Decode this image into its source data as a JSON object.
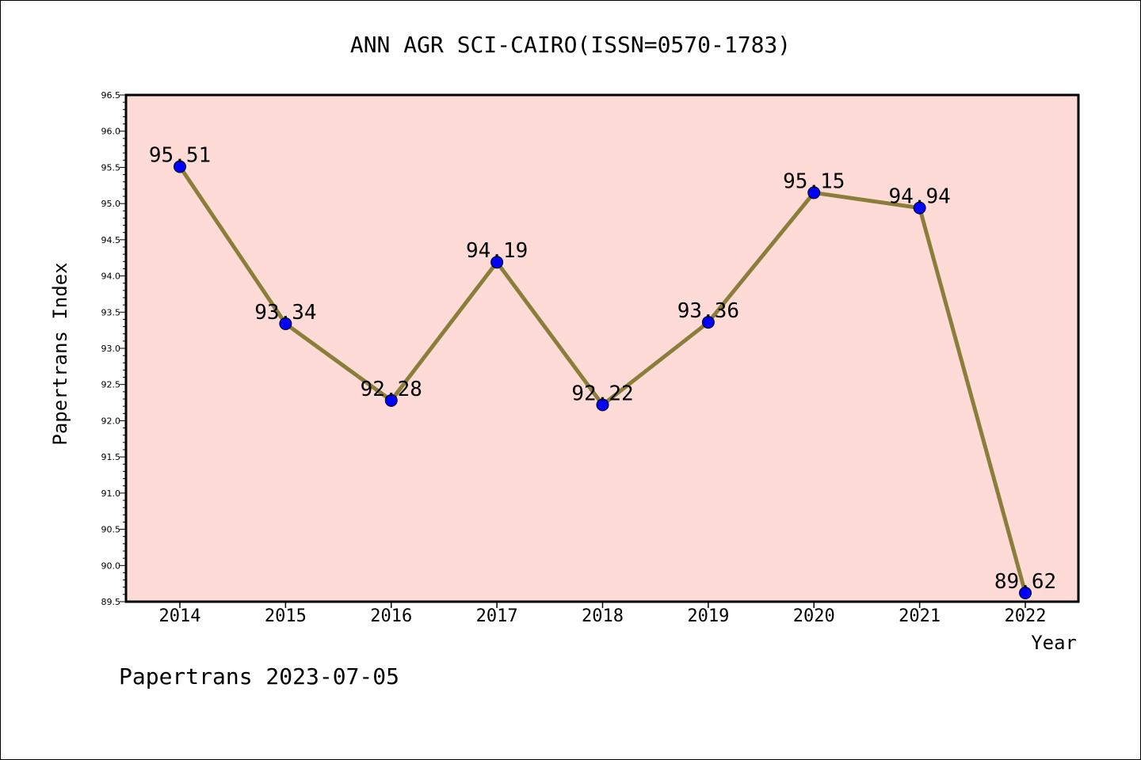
{
  "chart_data": {
    "type": "line",
    "title": "ANN AGR SCI-CAIRO(ISSN=0570-1783)",
    "xlabel": "Year",
    "ylabel": "Papertrans Index",
    "categories": [
      "2014",
      "2015",
      "2016",
      "2017",
      "2018",
      "2019",
      "2020",
      "2021",
      "2022"
    ],
    "series": [
      {
        "values": [
          95.51,
          93.34,
          92.28,
          94.19,
          92.22,
          93.36,
          95.15,
          94.94,
          89.62
        ],
        "data_labels": [
          "95.51",
          "93.34",
          "92.28",
          "94.19",
          "92.22",
          "93.36",
          "95.15",
          "94.94",
          "89.62"
        ]
      }
    ],
    "ylim": [
      89.5,
      96.5
    ],
    "yticks": [
      "89.5",
      "90.0",
      "90.5",
      "91.0",
      "91.5",
      "92.0",
      "92.5",
      "93.0",
      "93.5",
      "94.0",
      "94.5",
      "95.0",
      "95.5",
      "96.0",
      "96.5"
    ],
    "grid": false,
    "legend": "none",
    "colors": {
      "plot_background": "#FFDBD8",
      "line": "#8B7D3A",
      "marker": "#0000FF"
    }
  },
  "footer": "Papertrans 2023-07-05"
}
